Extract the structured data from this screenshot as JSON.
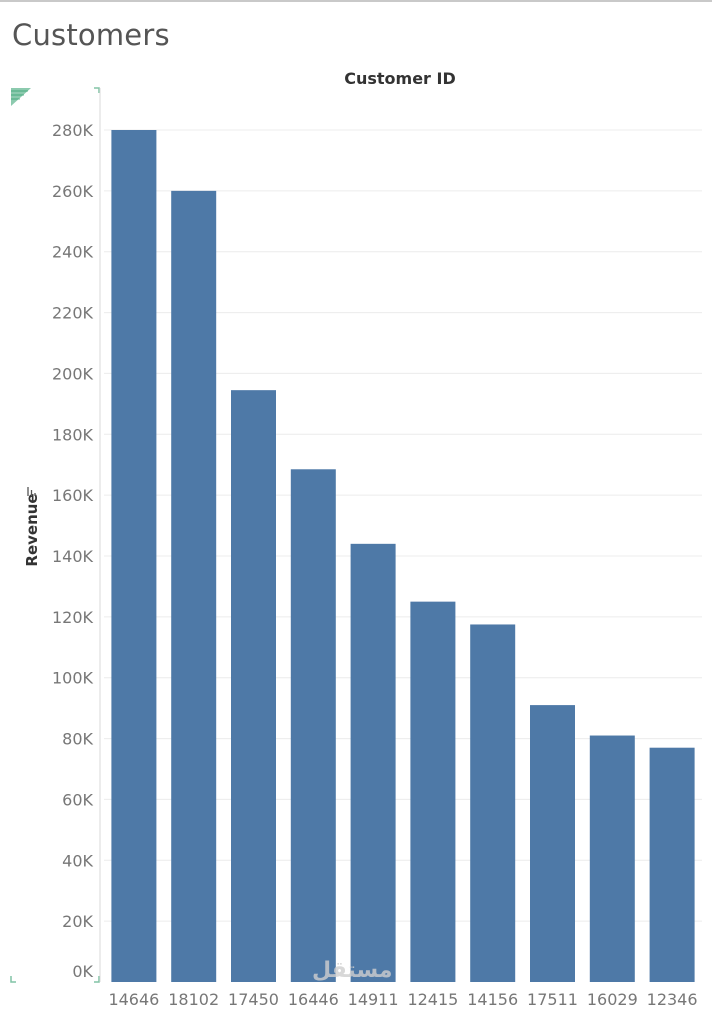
{
  "sheet": {
    "title": "Customers"
  },
  "watermark": "مستقل",
  "chart_data": {
    "type": "bar",
    "column_header": "Customer ID",
    "ylabel": "Revenue",
    "sort_indicator": "sort-descending-icon",
    "categories": [
      "14646",
      "18102",
      "17450",
      "16446",
      "14911",
      "12415",
      "14156",
      "17511",
      "16029",
      "12346"
    ],
    "values": [
      280000,
      260000,
      194500,
      168500,
      144000,
      125000,
      117500,
      91000,
      81000,
      77000
    ],
    "ylim": [
      0,
      280000
    ],
    "yticks": [
      0,
      20000,
      40000,
      60000,
      80000,
      100000,
      120000,
      140000,
      160000,
      180000,
      200000,
      220000,
      240000,
      260000,
      280000
    ],
    "ytick_labels": [
      "0K",
      "20K",
      "40K",
      "60K",
      "80K",
      "100K",
      "120K",
      "140K",
      "160K",
      "180K",
      "200K",
      "220K",
      "240K",
      "260K",
      "280K"
    ],
    "bar_color": "#4e79a7",
    "gridline_color": "#ececec",
    "grid": true,
    "legend": "none"
  }
}
